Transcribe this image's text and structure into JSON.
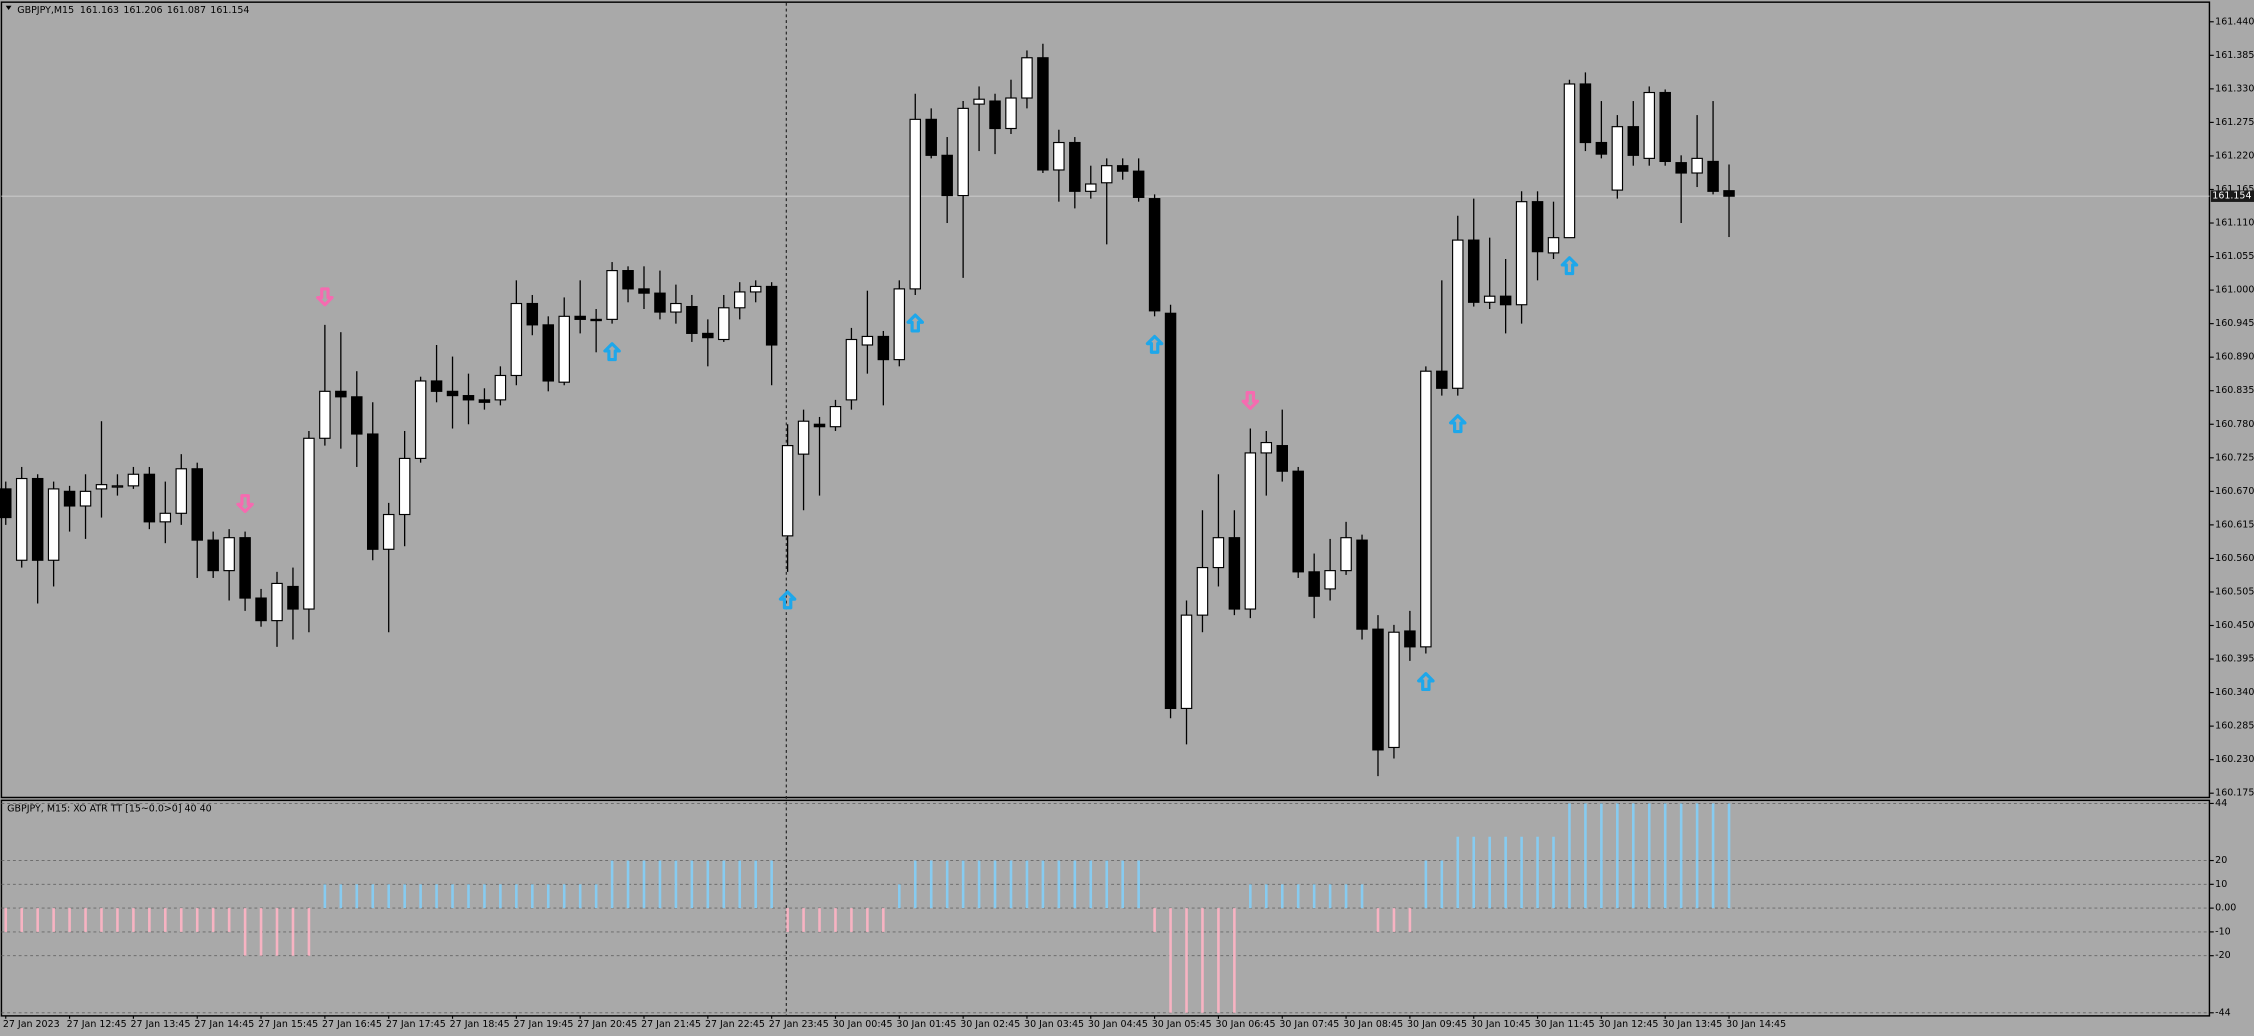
{
  "chart_data": [
    {
      "type": "candlestick",
      "title": "GBPJPY,M15",
      "categories": [
        "27 Jan 2023",
        null,
        null,
        null,
        "27 Jan 12:45",
        null,
        null,
        null,
        "27 Jan 13:45",
        null,
        null,
        null,
        "27 Jan 14:45",
        null,
        null,
        null,
        "27 Jan 15:45",
        null,
        null,
        null,
        "27 Jan 16:45",
        null,
        null,
        null,
        "27 Jan 17:45",
        null,
        null,
        null,
        "27 Jan 18:45",
        null,
        null,
        null,
        "27 Jan 19:45",
        null,
        null,
        null,
        "27 Jan 20:45",
        null,
        null,
        null,
        "27 Jan 21:45",
        null,
        null,
        null,
        "27 Jan 22:45",
        null,
        null,
        null,
        "27 Jan 23:45",
        null,
        null,
        null,
        "30 Jan 00:45",
        null,
        null,
        null,
        "30 Jan 01:45",
        null,
        null,
        null,
        "30 Jan 02:45",
        null,
        null,
        null,
        "30 Jan 03:45",
        null,
        null,
        null,
        "30 Jan 04:45",
        null,
        null,
        null,
        "30 Jan 05:45",
        null,
        null,
        null,
        "30 Jan 06:45",
        null,
        null,
        null,
        "30 Jan 07:45",
        null,
        null,
        null,
        "30 Jan 08:45",
        null,
        null,
        null,
        "30 Jan 09:45",
        null,
        null,
        null,
        "30 Jan 10:45",
        null,
        null,
        null,
        "30 Jan 11:45",
        null,
        null,
        null,
        "30 Jan 12:45",
        null,
        null,
        null,
        "30 Jan 13:45",
        null,
        null,
        null,
        "30 Jan 14:45"
      ],
      "open": [
        160.674,
        160.557,
        160.691,
        160.557,
        160.67,
        160.646,
        160.674,
        160.677,
        160.679,
        160.698,
        160.62,
        160.634,
        160.707,
        160.59,
        160.54,
        160.594,
        160.495,
        160.458,
        160.514,
        160.477,
        160.757,
        160.834,
        160.825,
        160.764,
        160.575,
        160.632,
        160.724,
        160.851,
        160.834,
        160.827,
        160.82,
        160.82,
        160.86,
        160.978,
        160.943,
        160.849,
        160.957,
        160.952,
        160.952,
        161.032,
        161.002,
        160.995,
        160.964,
        160.973,
        160.929,
        160.919,
        160.971,
        160.997,
        161.006,
        160.597,
        160.731,
        160.78,
        160.776,
        160.82,
        160.91,
        160.924,
        160.886,
        161.002,
        161.28,
        161.221,
        161.155,
        161.305,
        161.31,
        161.265,
        161.315,
        161.381,
        161.197,
        161.242,
        161.162,
        161.176,
        161.204,
        161.195,
        161.15,
        160.962,
        160.314,
        160.467,
        160.545,
        160.594,
        160.477,
        160.733,
        160.745,
        160.703,
        160.538,
        160.51,
        160.54,
        160.59,
        160.444,
        160.25,
        160.441,
        160.415,
        160.867,
        160.839,
        161.082,
        160.98,
        160.99,
        160.976,
        161.145,
        161.061,
        161.086,
        161.338,
        161.242,
        161.164,
        161.268,
        161.216,
        161.324,
        161.209,
        161.192,
        161.211,
        161.163
      ],
      "high": [
        160.686,
        160.71,
        160.698,
        160.686,
        160.679,
        160.698,
        160.785,
        160.698,
        160.71,
        160.71,
        160.686,
        160.731,
        160.717,
        160.604,
        160.608,
        160.604,
        160.51,
        160.538,
        160.545,
        160.769,
        160.943,
        160.931,
        160.867,
        160.816,
        160.651,
        160.769,
        160.858,
        160.91,
        160.891,
        160.863,
        160.839,
        160.875,
        161.016,
        160.992,
        160.957,
        160.988,
        161.016,
        160.969,
        161.046,
        161.039,
        161.039,
        161.032,
        161.009,
        160.992,
        160.952,
        160.992,
        161.013,
        161.016,
        161.013,
        160.78,
        160.804,
        160.792,
        160.82,
        160.938,
        160.999,
        160.933,
        161.016,
        161.322,
        161.298,
        161.251,
        161.31,
        161.334,
        161.322,
        161.345,
        161.393,
        161.404,
        161.263,
        161.251,
        161.204,
        161.216,
        161.216,
        161.216,
        161.157,
        160.976,
        160.491,
        160.639,
        160.698,
        160.639,
        160.773,
        160.769,
        160.804,
        160.71,
        160.568,
        160.592,
        160.62,
        160.599,
        160.467,
        160.451,
        160.474,
        160.875,
        161.016,
        161.122,
        161.15,
        161.086,
        161.051,
        161.162,
        161.162,
        161.145,
        161.345,
        161.357,
        161.31,
        161.287,
        161.31,
        161.334,
        161.329,
        161.221,
        161.287,
        161.31,
        161.206
      ],
      "low": [
        160.615,
        160.545,
        160.486,
        160.514,
        160.604,
        160.592,
        160.627,
        160.663,
        160.674,
        160.608,
        160.585,
        160.615,
        160.528,
        160.528,
        160.491,
        160.474,
        160.448,
        160.415,
        160.427,
        160.439,
        160.745,
        160.74,
        160.71,
        160.557,
        160.439,
        160.58,
        160.717,
        160.816,
        160.773,
        160.78,
        160.804,
        160.811,
        160.844,
        160.926,
        160.834,
        160.844,
        160.929,
        160.898,
        160.945,
        160.98,
        160.969,
        160.952,
        160.945,
        160.915,
        160.875,
        160.915,
        160.952,
        160.98,
        160.844,
        160.538,
        160.639,
        160.663,
        160.769,
        160.804,
        160.863,
        160.811,
        160.875,
        160.992,
        161.216,
        161.11,
        161.02,
        161.228,
        161.223,
        161.256,
        161.298,
        161.192,
        161.145,
        161.134,
        161.15,
        161.075,
        161.181,
        161.145,
        160.957,
        160.298,
        160.255,
        160.439,
        160.514,
        160.467,
        160.462,
        160.663,
        160.686,
        160.528,
        160.462,
        160.491,
        160.533,
        160.427,
        160.203,
        160.232,
        160.392,
        160.404,
        160.827,
        160.827,
        160.973,
        160.969,
        160.929,
        160.945,
        161.016,
        161.051,
        161.086,
        161.228,
        161.216,
        161.15,
        161.204,
        161.204,
        161.204,
        161.11,
        161.169,
        161.157,
        161.087
      ],
      "close": [
        160.627,
        160.691,
        160.557,
        160.674,
        160.646,
        160.67,
        160.681,
        160.679,
        160.698,
        160.62,
        160.634,
        160.707,
        160.59,
        160.54,
        160.594,
        160.495,
        160.458,
        160.519,
        160.477,
        160.757,
        160.834,
        160.825,
        160.764,
        160.575,
        160.632,
        160.724,
        160.851,
        160.834,
        160.827,
        160.82,
        160.816,
        160.86,
        160.978,
        160.943,
        160.851,
        160.957,
        160.952,
        160.95,
        161.032,
        161.002,
        160.995,
        160.964,
        160.978,
        160.929,
        160.922,
        160.971,
        160.997,
        161.006,
        160.91,
        160.745,
        160.785,
        160.776,
        160.809,
        160.919,
        160.924,
        160.886,
        161.002,
        161.28,
        161.221,
        161.155,
        161.298,
        161.313,
        161.265,
        161.315,
        161.381,
        161.197,
        161.242,
        161.162,
        161.174,
        161.204,
        161.195,
        161.152,
        160.966,
        160.314,
        160.467,
        160.545,
        160.594,
        160.477,
        160.733,
        160.75,
        160.703,
        160.538,
        160.498,
        160.54,
        160.594,
        160.444,
        160.246,
        160.439,
        160.415,
        160.867,
        160.839,
        161.082,
        160.98,
        160.99,
        160.976,
        161.145,
        161.063,
        161.086,
        161.338,
        161.242,
        161.223,
        161.268,
        161.221,
        161.324,
        161.211,
        161.192,
        161.216,
        161.162,
        161.154
      ],
      "buy_signals": [
        38,
        49,
        57,
        72,
        89,
        91,
        98
      ],
      "sell_signals": [
        15,
        20,
        78
      ],
      "ylim": [
        160.168,
        161.471
      ],
      "yticks": [
        {
          "value": 161.44,
          "label": "161.440"
        },
        161.385,
        {
          "value": 161.33,
          "label": "161.330"
        },
        161.275,
        {
          "value": 161.22,
          "label": "161.220"
        },
        161.165,
        {
          "value": 161.11,
          "label": "161.110"
        },
        161.055,
        {
          "value": 161,
          "label": "161.000"
        },
        160.945,
        {
          "value": 160.89,
          "label": "160.890"
        },
        160.835,
        {
          "value": 160.78,
          "label": "160.780"
        },
        160.725,
        {
          "value": 160.67,
          "label": "160.670"
        },
        160.615,
        {
          "value": 160.56,
          "label": "160.560"
        },
        160.505,
        {
          "value": 160.45,
          "label": "160.450"
        },
        160.395,
        {
          "value": 160.34,
          "label": "160.340"
        },
        160.285,
        {
          "value": 160.23,
          "label": "160.230"
        },
        160.175
      ],
      "colors": {
        "up_body": "#ffffff",
        "down_body": "#000000",
        "outline": "#000000",
        "buy": "#1ea7ea",
        "sell": "#f56bb0",
        "bid_line": "#c8c8c8"
      },
      "grid": false
    },
    {
      "type": "bar",
      "title": "GBPJPY, M15: XO ATR TT [15~0.0>0] 40 40",
      "values": [
        -10,
        -10,
        -10,
        -10,
        -10,
        -10,
        -10,
        -10,
        -10,
        -10,
        -10,
        -10,
        -10,
        -10,
        -10,
        -20,
        -20,
        -20,
        -20,
        -20,
        10,
        10,
        10,
        10,
        10,
        10,
        10,
        10,
        10,
        10,
        10,
        10,
        10,
        10,
        10,
        10,
        10,
        10,
        20,
        20,
        20,
        20,
        20,
        20,
        20,
        20,
        20,
        20,
        20,
        -10,
        -10,
        -10,
        -10,
        -10,
        -10,
        -10,
        10,
        20,
        20,
        20,
        20,
        20,
        20,
        20,
        20,
        20,
        20,
        20,
        20,
        20,
        20,
        20,
        -10,
        -44,
        -44,
        -44,
        -44,
        -44,
        10,
        10,
        10,
        10,
        10,
        10,
        10,
        10,
        -10,
        -10,
        -10,
        20,
        20,
        30,
        30,
        30,
        30,
        30,
        30,
        30,
        44,
        44,
        44,
        44,
        44,
        44,
        44,
        44,
        44,
        44,
        44
      ],
      "ylim": [
        -45,
        45
      ],
      "yticks": [
        44,
        20,
        10,
        {
          "value": 0,
          "label": "0.00"
        },
        -10,
        -20,
        -44
      ],
      "colors": {
        "positive": "#87cbf0",
        "negative": "#f7b3c2"
      },
      "grid": true
    }
  ]
}
